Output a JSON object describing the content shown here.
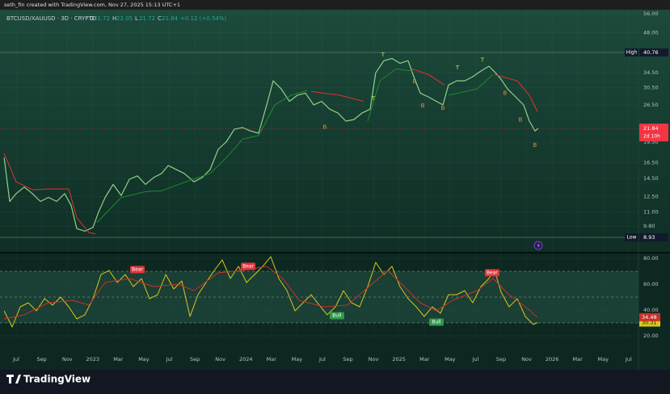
{
  "header": {
    "credit": "seth_fin created with TradingView.com, Nov 27, 2025 15:13 UTC+1",
    "brand": "TradingView"
  },
  "chart_data": [
    {
      "type": "line",
      "symbol": "BTCUSD/XAUUSD · 3D · CRYPTO",
      "ohlc": [
        {
          "label": "O",
          "value": 21.72
        },
        {
          "label": "H",
          "value": 22.05
        },
        {
          "label": "L",
          "value": 21.72
        },
        {
          "label": "C",
          "value": 21.84
        }
      ],
      "change": "+0.12 (+0.54%)",
      "log_scale": true,
      "xlim": [
        -1.27,
        48.77
      ],
      "xticks": [
        {
          "value": 0,
          "label": "Jul"
        },
        {
          "value": 2,
          "label": "Sep"
        },
        {
          "value": 4,
          "label": "Nov"
        },
        {
          "value": 6,
          "label": "2023"
        },
        {
          "value": 8,
          "label": "Mar"
        },
        {
          "value": 10,
          "label": "May"
        },
        {
          "value": 12,
          "label": "Jul"
        },
        {
          "value": 14,
          "label": "Sep"
        },
        {
          "value": 16,
          "label": "Nov"
        },
        {
          "value": 18,
          "label": "2024"
        },
        {
          "value": 20,
          "label": "Mar"
        },
        {
          "value": 22,
          "label": "May"
        },
        {
          "value": 24,
          "label": "Jul"
        },
        {
          "value": 26,
          "label": "Sep"
        },
        {
          "value": 28,
          "label": "Nov"
        },
        {
          "value": 30,
          "label": "2025"
        },
        {
          "value": 32,
          "label": "Mar"
        },
        {
          "value": 34,
          "label": "May"
        },
        {
          "value": 36,
          "label": "Jul"
        },
        {
          "value": 38,
          "label": "Sep"
        },
        {
          "value": 40,
          "label": "Nov"
        },
        {
          "value": 42,
          "label": "2026"
        },
        {
          "value": 44,
          "label": "Mar"
        },
        {
          "value": 46,
          "label": "May"
        },
        {
          "value": 48,
          "label": "Jul"
        }
      ],
      "ylim": [
        7.93,
        57.9
      ],
      "yticks": [
        {
          "value": 9.8,
          "label": "9.80"
        },
        {
          "value": 11,
          "label": "11.00"
        },
        {
          "value": 12.5,
          "label": "12.50"
        },
        {
          "value": 14.5,
          "label": "14.50"
        },
        {
          "value": 16.5,
          "label": "16.50"
        },
        {
          "value": 19.5,
          "label": "19.50"
        },
        {
          "value": 26.5,
          "label": "26.50"
        },
        {
          "value": 30.5,
          "label": "30.50"
        },
        {
          "value": 34.5,
          "label": "34.50"
        },
        {
          "value": 48,
          "label": "48.00"
        },
        {
          "value": 56,
          "label": "56.00"
        }
      ],
      "high": {
        "label": "High",
        "value": 40.76
      },
      "low": {
        "label": "Low",
        "value": 8.93
      },
      "countdown": "2d 10h",
      "series": [
        {
          "color": "#8fd18a",
          "x": [
            -0.95,
            -0.51,
            0,
            0.63,
            1.27,
            1.9,
            2.53,
            3.17,
            3.8,
            4.31,
            4.75,
            5.38,
            6.02,
            6.46,
            6.97,
            7.6,
            8.23,
            8.87,
            9.5,
            10.13,
            10.77,
            11.4,
            11.91,
            12.54,
            13.17,
            13.93,
            14.57,
            15.2,
            15.83,
            16.47,
            17.1,
            17.73,
            18.37,
            19.0,
            19.63,
            20.14,
            20.77,
            21.41,
            22.04,
            22.67,
            23.31,
            23.94,
            24.57,
            25.21,
            25.84,
            26.47,
            27.11,
            27.74,
            28.18,
            28.82,
            29.45,
            30.08,
            30.72,
            31.16,
            31.67,
            32.3,
            32.93,
            33.44,
            33.88,
            34.52,
            35.15,
            35.78,
            36.42,
            37.05,
            37.56,
            38.0,
            38.51,
            39.14,
            39.77,
            40.22,
            40.66,
            40.91
          ],
          "values": [
            17.2,
            12.0,
            12.8,
            13.5,
            12.8,
            12.0,
            12.4,
            12.0,
            12.8,
            11.6,
            9.6,
            9.4,
            9.7,
            11.0,
            12.4,
            13.8,
            12.6,
            14.4,
            14.8,
            13.8,
            14.6,
            15.1,
            16.1,
            15.6,
            15.1,
            14.1,
            14.6,
            15.6,
            18.4,
            19.6,
            21.7,
            22.0,
            21.4,
            21.0,
            26.5,
            32.3,
            30.2,
            27.3,
            28.7,
            29.2,
            26.5,
            27.3,
            25.6,
            24.8,
            23.2,
            23.5,
            24.8,
            25.6,
            34.5,
            38.1,
            38.8,
            37.3,
            38.1,
            33.4,
            29.2,
            28.3,
            27.3,
            26.5,
            31.2,
            32.3,
            32.3,
            33.4,
            35.0,
            36.4,
            34.5,
            32.7,
            30.2,
            28.3,
            26.5,
            23.2,
            21.4,
            21.84
          ]
        },
        {
          "color": "#e0312f",
          "x": [
            -0.95,
            0,
            1.27,
            2.53,
            4.12,
            4.75,
            5.7,
            6.21,
            null,
            23.12,
            25.33,
            27.23,
            null,
            31.03,
            32.3,
            33.57,
            null,
            37.49,
            39.27,
            40.22,
            40.85
          ],
          "values": [
            17.8,
            14.1,
            13.2,
            13.3,
            13.3,
            10.5,
            9.3,
            9.2,
            null,
            29.6,
            28.7,
            27.3,
            null,
            35.6,
            34.0,
            31.2,
            null,
            34.0,
            32.3,
            28.7,
            25.1
          ]
        },
        {
          "color": "#1e8a2e",
          "x": [
            6.33,
            8.23,
            10.13,
            11.4,
            13.3,
            15.2,
            16.47,
            17.73,
            19.0,
            20.27,
            21.53,
            22.8,
            null,
            27.55,
            28.5,
            29.77,
            31.03,
            null,
            33.88,
            36.1,
            37.37
          ],
          "values": [
            10.1,
            12.4,
            13.0,
            13.1,
            14.1,
            15.1,
            17.2,
            20.0,
            20.6,
            26.5,
            28.7,
            29.8,
            null,
            23.2,
            32.3,
            35.6,
            35.0,
            null,
            28.7,
            30.2,
            34.0
          ]
        }
      ],
      "annotations": [
        {
          "text": "T",
          "x": 28.75,
          "y": 39.9
        },
        {
          "text": "T",
          "x": 27.99,
          "y": 27.9
        },
        {
          "text": "T",
          "x": 34.58,
          "y": 35.9
        },
        {
          "text": "T",
          "x": 36.54,
          "y": 38.3
        },
        {
          "text": "B",
          "x": 24.19,
          "y": 22.1
        },
        {
          "text": "B",
          "x": 31.22,
          "y": 32.1
        },
        {
          "text": "B",
          "x": 31.86,
          "y": 26.3
        },
        {
          "text": "B",
          "x": 33.44,
          "y": 25.8
        },
        {
          "text": "B",
          "x": 38.31,
          "y": 29.2
        },
        {
          "text": "B",
          "x": 39.52,
          "y": 23.4
        },
        {
          "text": "B",
          "x": 40.66,
          "y": 19.0
        }
      ]
    },
    {
      "type": "line",
      "ylim": [
        18.75,
        83.75
      ],
      "yticks": [
        {
          "value": 20,
          "label": "20.00"
        },
        {
          "value": 40,
          "label": "40.00"
        },
        {
          "value": 60,
          "label": "60.00"
        },
        {
          "value": 80,
          "label": "80.00"
        }
      ],
      "levels": [
        70,
        50,
        30
      ],
      "series": [
        {
          "color": "#d8c81c",
          "x": [
            -0.95,
            -0.32,
            0.32,
            0.95,
            1.58,
            2.22,
            2.85,
            3.48,
            4.12,
            4.75,
            5.38,
            6.02,
            6.65,
            7.28,
            7.92,
            8.55,
            9.18,
            9.82,
            10.45,
            11.08,
            11.72,
            12.35,
            12.98,
            13.62,
            14.25,
            14.88,
            15.52,
            16.15,
            16.78,
            17.42,
            18.05,
            18.68,
            19.32,
            19.95,
            20.58,
            21.22,
            21.85,
            22.48,
            23.12,
            23.75,
            24.38,
            25.02,
            25.65,
            26.28,
            26.92,
            27.55,
            28.18,
            28.82,
            29.45,
            30.08,
            30.72,
            31.35,
            31.98,
            32.62,
            33.25,
            33.88,
            34.52,
            35.15,
            35.78,
            36.42,
            37.05,
            37.49,
            38.0,
            38.63,
            39.27,
            39.9,
            40.53,
            40.85
          ],
          "values": [
            39.4,
            26.9,
            42.5,
            45.6,
            39.4,
            48.8,
            43.8,
            50,
            42.5,
            33.1,
            36.3,
            48.8,
            67.5,
            70.6,
            61.3,
            67.5,
            58.1,
            64.4,
            48.8,
            51.9,
            67.5,
            56.3,
            62.5,
            35,
            51.9,
            61.3,
            70.6,
            78.8,
            64.4,
            73.8,
            61.3,
            67.5,
            73.8,
            81.3,
            64.4,
            55,
            39.4,
            45.6,
            51.9,
            43.8,
            36.3,
            42.5,
            55,
            45.6,
            42.5,
            58.1,
            76.9,
            67.5,
            73.8,
            58.1,
            48.8,
            42.5,
            35,
            42.5,
            37.5,
            51.9,
            51.9,
            55,
            45.6,
            58.1,
            64.4,
            70.6,
            53.8,
            42.5,
            48.8,
            35,
            28.8,
            30.31
          ]
        },
        {
          "color": "#c8312b",
          "x": [
            -0.95,
            0.63,
            2.53,
            4.43,
            5.7,
            6.97,
            8.87,
            10.77,
            12.67,
            13.93,
            15.83,
            17.73,
            19.63,
            20.9,
            22.17,
            24.07,
            25.97,
            27.87,
            29.13,
            30.4,
            31.67,
            32.93,
            34.2,
            36.1,
            37.37,
            38.63,
            39.9,
            40.85
          ],
          "values": [
            33.1,
            36.3,
            45.6,
            47.5,
            43.8,
            61.3,
            64.4,
            58.1,
            60,
            55,
            68.8,
            70.6,
            73.8,
            64.4,
            47.5,
            42.5,
            43.8,
            60,
            70.6,
            58.1,
            45.6,
            39.4,
            47.5,
            55,
            64.4,
            51.9,
            42.5,
            34.48
          ]
        }
      ],
      "annotations": [
        {
          "text": "Bear",
          "x": 9.5,
          "y": 71.3
        },
        {
          "text": "Bear",
          "x": 18.18,
          "y": 73.8
        },
        {
          "text": "Bear",
          "x": 37.3,
          "y": 68.8
        },
        {
          "text": "Bull",
          "x": 25.14,
          "y": 35.6
        },
        {
          "text": "Bull",
          "x": 32.93,
          "y": 30.6
        }
      ]
    }
  ]
}
